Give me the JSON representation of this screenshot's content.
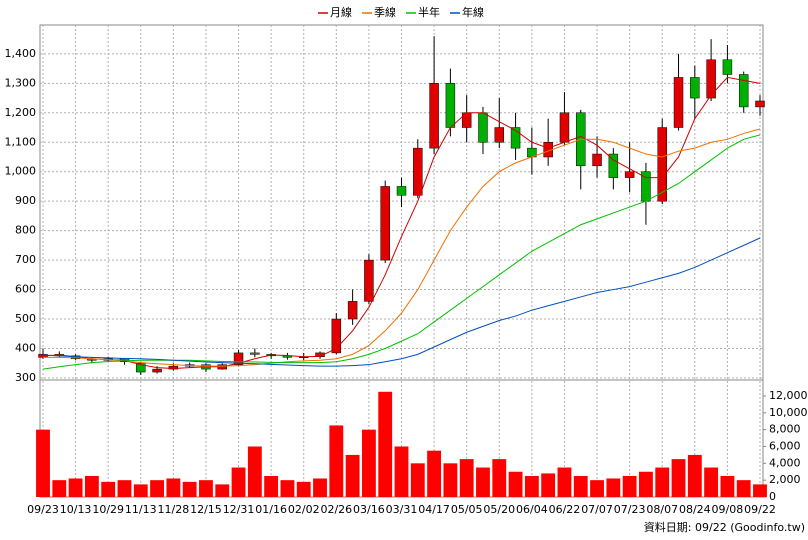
{
  "chart_data": [
    {
      "type": "candlestick",
      "categories": [
        "09/23",
        null,
        "10/13",
        null,
        "10/29",
        null,
        "11/13",
        null,
        "11/28",
        null,
        "12/15",
        null,
        "12/31",
        null,
        "01/16",
        null,
        "02/02",
        null,
        "02/26",
        null,
        "03/16",
        null,
        "03/31",
        null,
        "04/17",
        null,
        "05/05",
        null,
        "05/20",
        null,
        "06/04",
        null,
        "06/22",
        null,
        "07/07",
        null,
        "07/23",
        null,
        "08/07",
        null,
        "08/24",
        null,
        "09/08",
        null,
        "09/22"
      ],
      "open": [
        370,
        380,
        375,
        365,
        360,
        365,
        350,
        320,
        330,
        340,
        345,
        330,
        345,
        385,
        380,
        375,
        370,
        372,
        385,
        500,
        560,
        700,
        950,
        920,
        1080,
        1300,
        1150,
        1200,
        1100,
        1150,
        1080,
        1050,
        1100,
        1200,
        1020,
        1060,
        980,
        1000,
        900,
        1150,
        1320,
        1250,
        1380,
        1330,
        1220
      ],
      "high": [
        400,
        390,
        380,
        370,
        372,
        368,
        355,
        340,
        350,
        352,
        350,
        350,
        395,
        400,
        385,
        385,
        385,
        390,
        520,
        600,
        720,
        970,
        980,
        1110,
        1460,
        1350,
        1260,
        1220,
        1250,
        1200,
        1150,
        1180,
        1270,
        1210,
        1120,
        1080,
        1100,
        1030,
        1180,
        1400,
        1360,
        1450,
        1430,
        1340,
        1260
      ],
      "low": [
        365,
        370,
        360,
        350,
        355,
        345,
        310,
        315,
        325,
        335,
        320,
        328,
        340,
        370,
        365,
        362,
        360,
        365,
        380,
        480,
        550,
        690,
        880,
        910,
        1060,
        1120,
        1100,
        1060,
        1080,
        1040,
        990,
        1020,
        1090,
        940,
        980,
        940,
        930,
        820,
        890,
        1140,
        1180,
        1240,
        1300,
        1200,
        1190
      ],
      "close": [
        380,
        375,
        365,
        360,
        365,
        355,
        320,
        330,
        340,
        345,
        330,
        345,
        385,
        380,
        375,
        370,
        372,
        385,
        500,
        560,
        700,
        950,
        920,
        1080,
        1300,
        1150,
        1200,
        1100,
        1150,
        1080,
        1050,
        1100,
        1200,
        1020,
        1060,
        980,
        1000,
        900,
        1150,
        1320,
        1250,
        1380,
        1330,
        1220,
        1240
      ],
      "up_color": "#e00000",
      "down_color": "#00b000",
      "series": [
        {
          "name": "月線",
          "color": "#d00000",
          "values": [
            375,
            378,
            372,
            365,
            362,
            360,
            345,
            335,
            332,
            335,
            338,
            338,
            350,
            365,
            378,
            376,
            372,
            373,
            400,
            460,
            540,
            650,
            780,
            900,
            1050,
            1150,
            1200,
            1200,
            1170,
            1140,
            1100,
            1080,
            1100,
            1120,
            1090,
            1040,
            1010,
            980,
            980,
            1050,
            1180,
            1260,
            1320,
            1310,
            1300
          ]
        },
        {
          "name": "季線",
          "color": "#f07000",
          "values": [
            370,
            370,
            368,
            365,
            362,
            358,
            352,
            348,
            345,
            342,
            340,
            340,
            342,
            345,
            350,
            355,
            358,
            360,
            365,
            380,
            410,
            460,
            520,
            600,
            700,
            800,
            880,
            950,
            1000,
            1030,
            1050,
            1070,
            1090,
            1110,
            1110,
            1100,
            1080,
            1060,
            1050,
            1070,
            1080,
            1100,
            1110,
            1130,
            1145
          ]
        },
        {
          "name": "半年",
          "color": "#00c000",
          "values": [
            330,
            338,
            345,
            352,
            356,
            358,
            360,
            360,
            360,
            360,
            358,
            356,
            355,
            354,
            353,
            352,
            352,
            352,
            355,
            365,
            380,
            400,
            425,
            450,
            490,
            530,
            570,
            610,
            650,
            690,
            730,
            760,
            790,
            820,
            840,
            860,
            880,
            900,
            930,
            960,
            1000,
            1040,
            1080,
            1110,
            1125
          ]
        },
        {
          "name": "年線",
          "color": "#0050c0",
          "values": [
            378,
            375,
            372,
            370,
            368,
            366,
            365,
            363,
            360,
            357,
            354,
            352,
            350,
            348,
            346,
            344,
            342,
            340,
            340,
            342,
            345,
            355,
            365,
            380,
            405,
            430,
            455,
            475,
            495,
            510,
            530,
            545,
            560,
            575,
            590,
            600,
            610,
            625,
            640,
            655,
            675,
            700,
            725,
            750,
            775
          ]
        }
      ],
      "ylim": [
        293,
        1498
      ],
      "yticks": [
        300,
        400,
        500,
        600,
        700,
        800,
        900,
        {
          "value": 1000,
          "label": "1,000"
        },
        {
          "value": 1100,
          "label": "1,100"
        },
        {
          "value": 1200,
          "label": "1,200"
        },
        {
          "value": 1300,
          "label": "1,300"
        },
        {
          "value": 1400,
          "label": "1,400"
        }
      ],
      "grid": true
    },
    {
      "type": "bar",
      "values": [
        8000,
        2000,
        2200,
        2500,
        1800,
        2000,
        1500,
        2000,
        2200,
        1800,
        2000,
        1500,
        3500,
        6000,
        2500,
        2000,
        1800,
        2200,
        8500,
        5000,
        8000,
        12500,
        6000,
        4000,
        5500,
        4000,
        4500,
        3500,
        4500,
        3000,
        2500,
        2800,
        3500,
        2500,
        2000,
        2200,
        2500,
        3000,
        3500,
        4500,
        5000,
        3500,
        2500,
        2000,
        1500
      ],
      "color": "#ff0000",
      "ylim": [
        0,
        13900
      ],
      "yticks": [
        0,
        {
          "value": 2000,
          "label": "2,000"
        },
        {
          "value": 4000,
          "label": "4,000"
        },
        {
          "value": 6000,
          "label": "6,000"
        },
        {
          "value": 8000,
          "label": "8,000"
        },
        {
          "value": 10000,
          "label": "10,000"
        },
        {
          "value": 12000,
          "label": "12,000"
        }
      ],
      "grid": true
    }
  ],
  "footer": "資料日期: 09/22 (Goodinfo.tw)"
}
